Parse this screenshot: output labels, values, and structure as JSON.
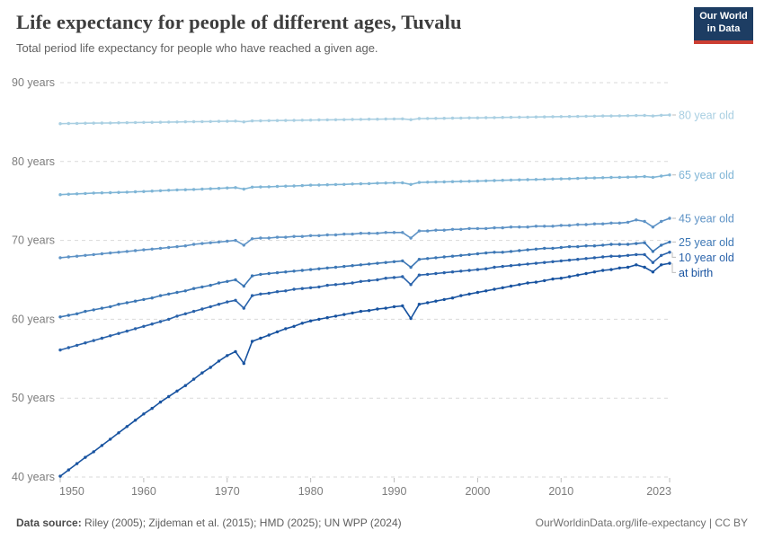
{
  "header": {
    "title": "Life expectancy for people of different ages, Tuvalu",
    "subtitle": "Total period life expectancy for people who have reached a given age."
  },
  "logo": {
    "line1": "Our World",
    "line2": "in Data",
    "bg_color": "#1d3d63",
    "accent_color": "#cc3e33"
  },
  "footer": {
    "datasource_label": "Data source:",
    "datasource_text": " Riley (2005); Zijdeman et al. (2015); HMD (2025); UN WPP (2024)",
    "link_text": "OurWorldinData.org/life-expectancy | CC BY"
  },
  "chart_data": {
    "type": "line",
    "title": "Life expectancy for people of different ages, Tuvalu",
    "subtitle": "Total period life expectancy for people who have reached a given age.",
    "xlabel": "",
    "ylabel": "",
    "xlim": [
      1950,
      2023
    ],
    "ylim": [
      40,
      90
    ],
    "grid": "horizontal-dashed",
    "legend_position": "right-edge-labels",
    "y_ticks": [
      {
        "value": 90,
        "label": "90 years"
      },
      {
        "value": 80,
        "label": "80 years"
      },
      {
        "value": 70,
        "label": "70 years"
      },
      {
        "value": 60,
        "label": "60 years"
      },
      {
        "value": 50,
        "label": "50 years"
      },
      {
        "value": 40,
        "label": "40 years"
      }
    ],
    "x_ticks": [
      {
        "value": 1950,
        "label": "1950"
      },
      {
        "value": 1960,
        "label": "1960"
      },
      {
        "value": 1970,
        "label": "1970"
      },
      {
        "value": 1980,
        "label": "1980"
      },
      {
        "value": 1990,
        "label": "1990"
      },
      {
        "value": 2000,
        "label": "2000"
      },
      {
        "value": 2010,
        "label": "2010"
      },
      {
        "value": 2023,
        "label": "2023"
      }
    ],
    "x": [
      1950,
      1951,
      1952,
      1953,
      1954,
      1955,
      1956,
      1957,
      1958,
      1959,
      1960,
      1961,
      1962,
      1963,
      1964,
      1965,
      1966,
      1967,
      1968,
      1969,
      1970,
      1971,
      1972,
      1973,
      1974,
      1975,
      1976,
      1977,
      1978,
      1979,
      1980,
      1981,
      1982,
      1983,
      1984,
      1985,
      1986,
      1987,
      1988,
      1989,
      1990,
      1991,
      1992,
      1993,
      1994,
      1995,
      1996,
      1997,
      1998,
      1999,
      2000,
      2001,
      2002,
      2003,
      2004,
      2005,
      2006,
      2007,
      2008,
      2009,
      2010,
      2011,
      2012,
      2013,
      2014,
      2015,
      2016,
      2017,
      2018,
      2019,
      2020,
      2021,
      2022,
      2023
    ],
    "series": [
      {
        "name": "80 year old",
        "color": "#a9cfe2",
        "values": [
          84.8,
          84.82,
          84.83,
          84.85,
          84.86,
          84.88,
          84.89,
          84.91,
          84.92,
          84.94,
          84.95,
          84.97,
          84.98,
          85.0,
          85.01,
          85.03,
          85.04,
          85.06,
          85.07,
          85.09,
          85.1,
          85.12,
          85.02,
          85.15,
          85.16,
          85.18,
          85.19,
          85.21,
          85.22,
          85.24,
          85.25,
          85.27,
          85.28,
          85.3,
          85.31,
          85.33,
          85.34,
          85.36,
          85.37,
          85.39,
          85.4,
          85.41,
          85.31,
          85.44,
          85.45,
          85.47,
          85.48,
          85.5,
          85.51,
          85.53,
          85.54,
          85.56,
          85.57,
          85.59,
          85.6,
          85.62,
          85.63,
          85.65,
          85.66,
          85.68,
          85.69,
          85.71,
          85.72,
          85.74,
          85.75,
          85.77,
          85.78,
          85.8,
          85.81,
          85.83,
          85.84,
          85.78,
          85.87,
          85.9
        ]
      },
      {
        "name": "65 year old",
        "color": "#7fb5d6",
        "values": [
          75.8,
          75.85,
          75.9,
          75.95,
          76.0,
          76.02,
          76.05,
          76.08,
          76.12,
          76.16,
          76.2,
          76.25,
          76.3,
          76.35,
          76.4,
          76.42,
          76.46,
          76.5,
          76.55,
          76.6,
          76.65,
          76.7,
          76.5,
          76.75,
          76.78,
          76.8,
          76.85,
          76.88,
          76.9,
          76.95,
          77.0,
          77.02,
          77.05,
          77.08,
          77.1,
          77.15,
          77.18,
          77.2,
          77.25,
          77.28,
          77.3,
          77.3,
          77.1,
          77.35,
          77.38,
          77.4,
          77.42,
          77.45,
          77.48,
          77.5,
          77.52,
          77.55,
          77.58,
          77.62,
          77.65,
          77.68,
          77.7,
          77.72,
          77.75,
          77.78,
          77.8,
          77.83,
          77.86,
          77.9,
          77.92,
          77.95,
          77.98,
          78.0,
          78.02,
          78.05,
          78.1,
          78.0,
          78.15,
          78.3
        ]
      },
      {
        "name": "45 year old",
        "color": "#5e93c6",
        "values": [
          67.8,
          67.9,
          68.0,
          68.1,
          68.2,
          68.3,
          68.4,
          68.5,
          68.6,
          68.7,
          68.8,
          68.9,
          69.0,
          69.1,
          69.2,
          69.3,
          69.5,
          69.6,
          69.7,
          69.8,
          69.9,
          70.0,
          69.4,
          70.2,
          70.3,
          70.3,
          70.4,
          70.4,
          70.5,
          70.5,
          70.6,
          70.6,
          70.7,
          70.7,
          70.8,
          70.8,
          70.9,
          70.9,
          70.9,
          71.0,
          71.0,
          71.0,
          70.3,
          71.2,
          71.2,
          71.3,
          71.3,
          71.4,
          71.4,
          71.5,
          71.5,
          71.5,
          71.6,
          71.6,
          71.7,
          71.7,
          71.7,
          71.8,
          71.8,
          71.8,
          71.9,
          71.9,
          72.0,
          72.0,
          72.1,
          72.1,
          72.2,
          72.2,
          72.3,
          72.6,
          72.4,
          71.7,
          72.4,
          72.8
        ]
      },
      {
        "name": "25 year old",
        "color": "#3c77b5",
        "values": [
          60.3,
          60.5,
          60.7,
          61.0,
          61.2,
          61.4,
          61.6,
          61.9,
          62.1,
          62.3,
          62.5,
          62.7,
          63.0,
          63.2,
          63.4,
          63.6,
          63.9,
          64.1,
          64.3,
          64.6,
          64.8,
          65.0,
          64.2,
          65.5,
          65.7,
          65.8,
          65.9,
          66.0,
          66.1,
          66.2,
          66.3,
          66.4,
          66.5,
          66.6,
          66.7,
          66.8,
          66.9,
          67.0,
          67.1,
          67.2,
          67.3,
          67.4,
          66.6,
          67.6,
          67.7,
          67.8,
          67.9,
          68.0,
          68.1,
          68.2,
          68.3,
          68.4,
          68.5,
          68.5,
          68.6,
          68.7,
          68.8,
          68.9,
          69.0,
          69.0,
          69.1,
          69.2,
          69.2,
          69.3,
          69.3,
          69.4,
          69.5,
          69.5,
          69.5,
          69.6,
          69.7,
          68.6,
          69.4,
          69.8
        ]
      },
      {
        "name": "10 year old",
        "color": "#2a63ab",
        "values": [
          56.1,
          56.4,
          56.7,
          57.0,
          57.3,
          57.6,
          57.9,
          58.2,
          58.5,
          58.8,
          59.1,
          59.4,
          59.7,
          60.0,
          60.4,
          60.7,
          61.0,
          61.3,
          61.6,
          61.9,
          62.2,
          62.4,
          61.4,
          63.0,
          63.2,
          63.3,
          63.5,
          63.6,
          63.8,
          63.9,
          64.0,
          64.1,
          64.3,
          64.4,
          64.5,
          64.6,
          64.8,
          64.9,
          65.0,
          65.2,
          65.3,
          65.4,
          64.4,
          65.6,
          65.7,
          65.8,
          65.9,
          66.0,
          66.1,
          66.2,
          66.3,
          66.4,
          66.6,
          66.7,
          66.8,
          66.9,
          67.0,
          67.1,
          67.2,
          67.3,
          67.4,
          67.5,
          67.6,
          67.7,
          67.8,
          67.9,
          68.0,
          68.0,
          68.1,
          68.2,
          68.2,
          67.2,
          68.1,
          68.5
        ]
      },
      {
        "name": "at birth",
        "color": "#1853a0",
        "values": [
          40.1,
          40.9,
          41.7,
          42.5,
          43.2,
          44.0,
          44.8,
          45.6,
          46.4,
          47.2,
          48.0,
          48.7,
          49.5,
          50.2,
          50.9,
          51.6,
          52.4,
          53.2,
          53.9,
          54.7,
          55.4,
          55.9,
          54.4,
          57.2,
          57.6,
          58.0,
          58.4,
          58.8,
          59.1,
          59.5,
          59.8,
          60.0,
          60.2,
          60.4,
          60.6,
          60.8,
          61.0,
          61.1,
          61.3,
          61.4,
          61.6,
          61.7,
          60.1,
          61.9,
          62.1,
          62.3,
          62.5,
          62.7,
          63.0,
          63.2,
          63.4,
          63.6,
          63.8,
          64.0,
          64.2,
          64.4,
          64.6,
          64.7,
          64.9,
          65.1,
          65.2,
          65.4,
          65.6,
          65.8,
          66.0,
          66.2,
          66.3,
          66.5,
          66.6,
          66.9,
          66.6,
          66.0,
          66.9,
          67.1
        ]
      }
    ]
  }
}
